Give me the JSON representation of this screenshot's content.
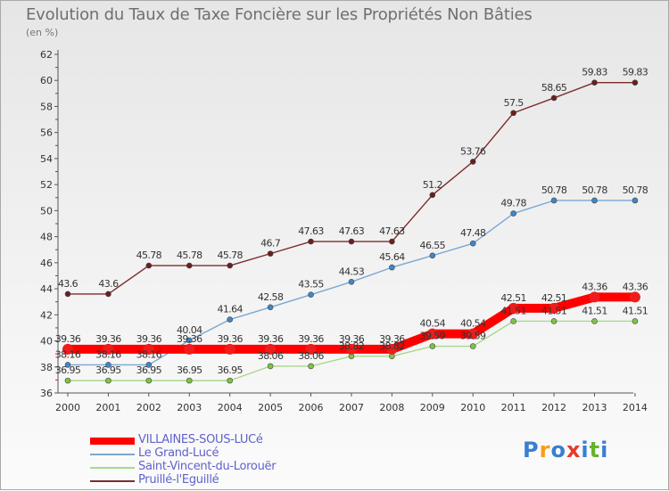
{
  "header": {
    "title": "Evolution du Taux de Taxe Foncière sur les Propriétés Non Bâties",
    "unit": "(en %)"
  },
  "brand": {
    "letters": [
      "P",
      "r",
      "o",
      "x",
      "i",
      "t",
      "i"
    ],
    "colors": [
      "#3a7fd0",
      "#f29f1d",
      "#3a7fd0",
      "#e63a2b",
      "#3a7fd0",
      "#66b32e",
      "#3a7fd0"
    ]
  },
  "chart_data": {
    "type": "line",
    "title": "Evolution du Taux de Taxe Foncière sur les Propriétés Non Bâties",
    "ylabel": "(en %)",
    "xlabel": "",
    "x": [
      2000,
      2001,
      2002,
      2003,
      2004,
      2005,
      2006,
      2007,
      2008,
      2009,
      2010,
      2011,
      2012,
      2013,
      2014
    ],
    "ylim": [
      36,
      62
    ],
    "yticks": [
      36,
      38,
      40,
      42,
      44,
      46,
      48,
      50,
      52,
      54,
      56,
      58,
      60,
      62
    ],
    "grid": false,
    "legend": "bottom-left",
    "series": [
      {
        "name": "VILLAINES-SOUS-LUCé",
        "color": "#ff0000",
        "marker_color": "#ee1c1c",
        "thick": true,
        "values": [
          39.36,
          39.36,
          39.36,
          39.36,
          39.36,
          39.36,
          39.36,
          39.36,
          39.36,
          40.54,
          40.54,
          42.51,
          42.51,
          43.36,
          43.36
        ],
        "labels": [
          "39.36",
          "39.36",
          "39.36",
          "39.36",
          "39.36",
          "39.36",
          "39.36",
          "39.36",
          "39.36",
          "40.54",
          "40.54",
          "42.51",
          "42.51",
          "43.36",
          "43.36"
        ]
      },
      {
        "name": "Le Grand-Lucé",
        "color": "#7ba7d2",
        "marker_color": "#3f86c9",
        "values": [
          38.16,
          38.16,
          38.16,
          40.04,
          41.64,
          42.58,
          43.55,
          44.53,
          45.64,
          46.55,
          47.48,
          49.78,
          50.78,
          50.78,
          50.78
        ],
        "labels": [
          "38.16",
          "38.16",
          "38.16",
          "40.04",
          "41.64",
          "42.58",
          "43.55",
          "44.53",
          "45.64",
          "46.55",
          "47.48",
          "49.78",
          "50.78",
          "50.78",
          "50.78"
        ]
      },
      {
        "name": "Saint-Vincent-du-Lorouër",
        "color": "#a8d98c",
        "marker_color": "#7dc540",
        "values": [
          36.95,
          36.95,
          36.95,
          36.95,
          36.95,
          38.06,
          38.06,
          38.82,
          38.82,
          39.59,
          39.59,
          41.51,
          41.51,
          41.51,
          41.51
        ],
        "labels": [
          "36.95",
          "36.95",
          "36.95",
          "36.95",
          "36.95",
          "38.06",
          "38.06",
          "38.82",
          "38.82",
          "39.59",
          "39.59",
          "41.51",
          "41.51",
          "41.51",
          "41.51"
        ]
      },
      {
        "name": "Pruillé-l'Eguillé",
        "color": "#7a2d2d",
        "marker_color": "#6a1f1f",
        "values": [
          43.6,
          43.6,
          45.78,
          45.78,
          45.78,
          46.7,
          47.63,
          47.63,
          47.63,
          51.2,
          53.76,
          57.5,
          58.65,
          59.83,
          59.83
        ],
        "labels": [
          "43.6",
          "43.6",
          "45.78",
          "45.78",
          "45.78",
          "46.7",
          "47.63",
          "47.63",
          "47.63",
          "51.2",
          "53.76",
          "57.5",
          "58.65",
          "59.83",
          "59.83"
        ]
      }
    ]
  }
}
